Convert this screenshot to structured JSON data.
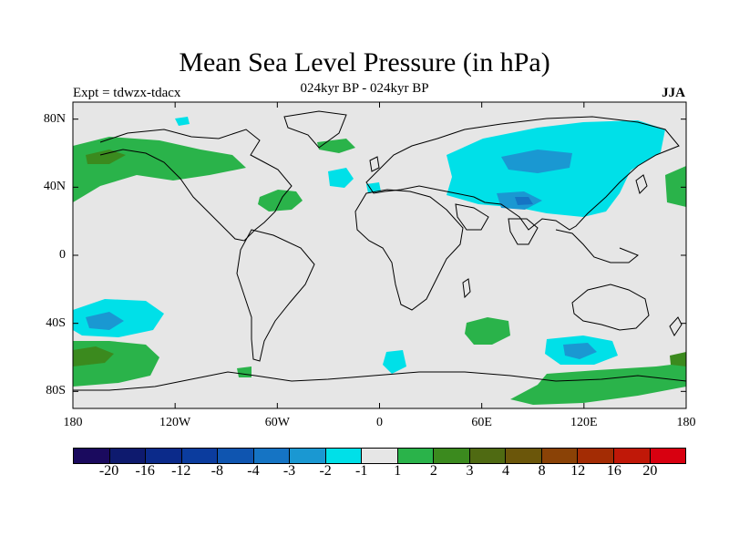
{
  "title": "Mean Sea Level Pressure (in hPa)",
  "subtitle": "024kyr BP - 024kyr BP",
  "experiment_label": "Expt = tdwzx-tdacx",
  "season": "JJA",
  "map": {
    "projection": "equirectangular",
    "lon_range": [
      -180,
      180
    ],
    "lat_range": [
      -90,
      90
    ],
    "background_color": "#e6e6e6",
    "coastline_color": "#000000",
    "lat_ticks": [
      {
        "value": 80,
        "label": "80N"
      },
      {
        "value": 40,
        "label": "40N"
      },
      {
        "value": 0,
        "label": "0"
      },
      {
        "value": -40,
        "label": "40S"
      },
      {
        "value": -80,
        "label": "80S"
      }
    ],
    "lon_ticks": [
      {
        "value": -180,
        "label": "180"
      },
      {
        "value": -120,
        "label": "120W"
      },
      {
        "value": -60,
        "label": "60W"
      },
      {
        "value": 0,
        "label": "0"
      },
      {
        "value": 60,
        "label": "60E"
      },
      {
        "value": 120,
        "label": "120E"
      },
      {
        "value": 180,
        "label": "180"
      }
    ]
  },
  "colorbar": {
    "colors": [
      "#1a0a5e",
      "#0e1a6e",
      "#0b2a8a",
      "#0b3c9e",
      "#0f55b0",
      "#1574c4",
      "#1a98d2",
      "#00e0e8",
      "#e6e6e6",
      "#2ab34a",
      "#3b8a1e",
      "#4f6a12",
      "#6b560a",
      "#8a4206",
      "#a32c04",
      "#c01808",
      "#d80010"
    ],
    "labels": [
      "-20",
      "-16",
      "-12",
      "-8",
      "-4",
      "-3",
      "-2",
      "-1",
      "1",
      "2",
      "3",
      "4",
      "8",
      "12",
      "16",
      "20"
    ]
  },
  "chart_data": {
    "type": "heatmap",
    "variable": "Mean Sea Level Pressure difference",
    "units": "hPa",
    "regions": [
      {
        "region": "Central/east Asia",
        "lon": [
          30,
          130
        ],
        "lat": [
          15,
          70
        ],
        "value_range": "-1 to -3",
        "min": -3
      },
      {
        "region": "Tibetan Plateau",
        "lon": [
          85,
          100
        ],
        "lat": [
          28,
          36
        ],
        "value_range": "-3 to -4",
        "min": -4
      },
      {
        "region": "Southern Pacific 40S",
        "lon": [
          -180,
          -130
        ],
        "lat": [
          -50,
          -27
        ],
        "value_range": "-1 to -3",
        "min": -3
      },
      {
        "region": "Southern Indian Ocean 55S",
        "lon": [
          90,
          145
        ],
        "lat": [
          -65,
          -45
        ],
        "value_range": "-1 to -3",
        "min": -3
      },
      {
        "region": "South Atlantic 40S",
        "lon": [
          50,
          75
        ],
        "lat": [
          -52,
          -35
        ],
        "value_range": "1 to 2",
        "max": 2
      },
      {
        "region": "Southern Ocean 60S Pacific",
        "lon": [
          -180,
          -120
        ],
        "lat": [
          -72,
          -50
        ],
        "value_range": "1 to 3",
        "max": 3
      },
      {
        "region": "North Pacific / Alaska",
        "lon": [
          -180,
          -110
        ],
        "lat": [
          45,
          65
        ],
        "value_range": "1 to 3",
        "max": 3
      },
      {
        "region": "North Atlantic 40N",
        "lon": [
          -70,
          -45
        ],
        "lat": [
          30,
          42
        ],
        "value_range": "1 to 2",
        "max": 2
      },
      {
        "region": "Antarctic coast",
        "lon": [
          50,
          170
        ],
        "lat": [
          -85,
          -70
        ],
        "value_range": "1 to 2",
        "max": 2
      }
    ]
  }
}
